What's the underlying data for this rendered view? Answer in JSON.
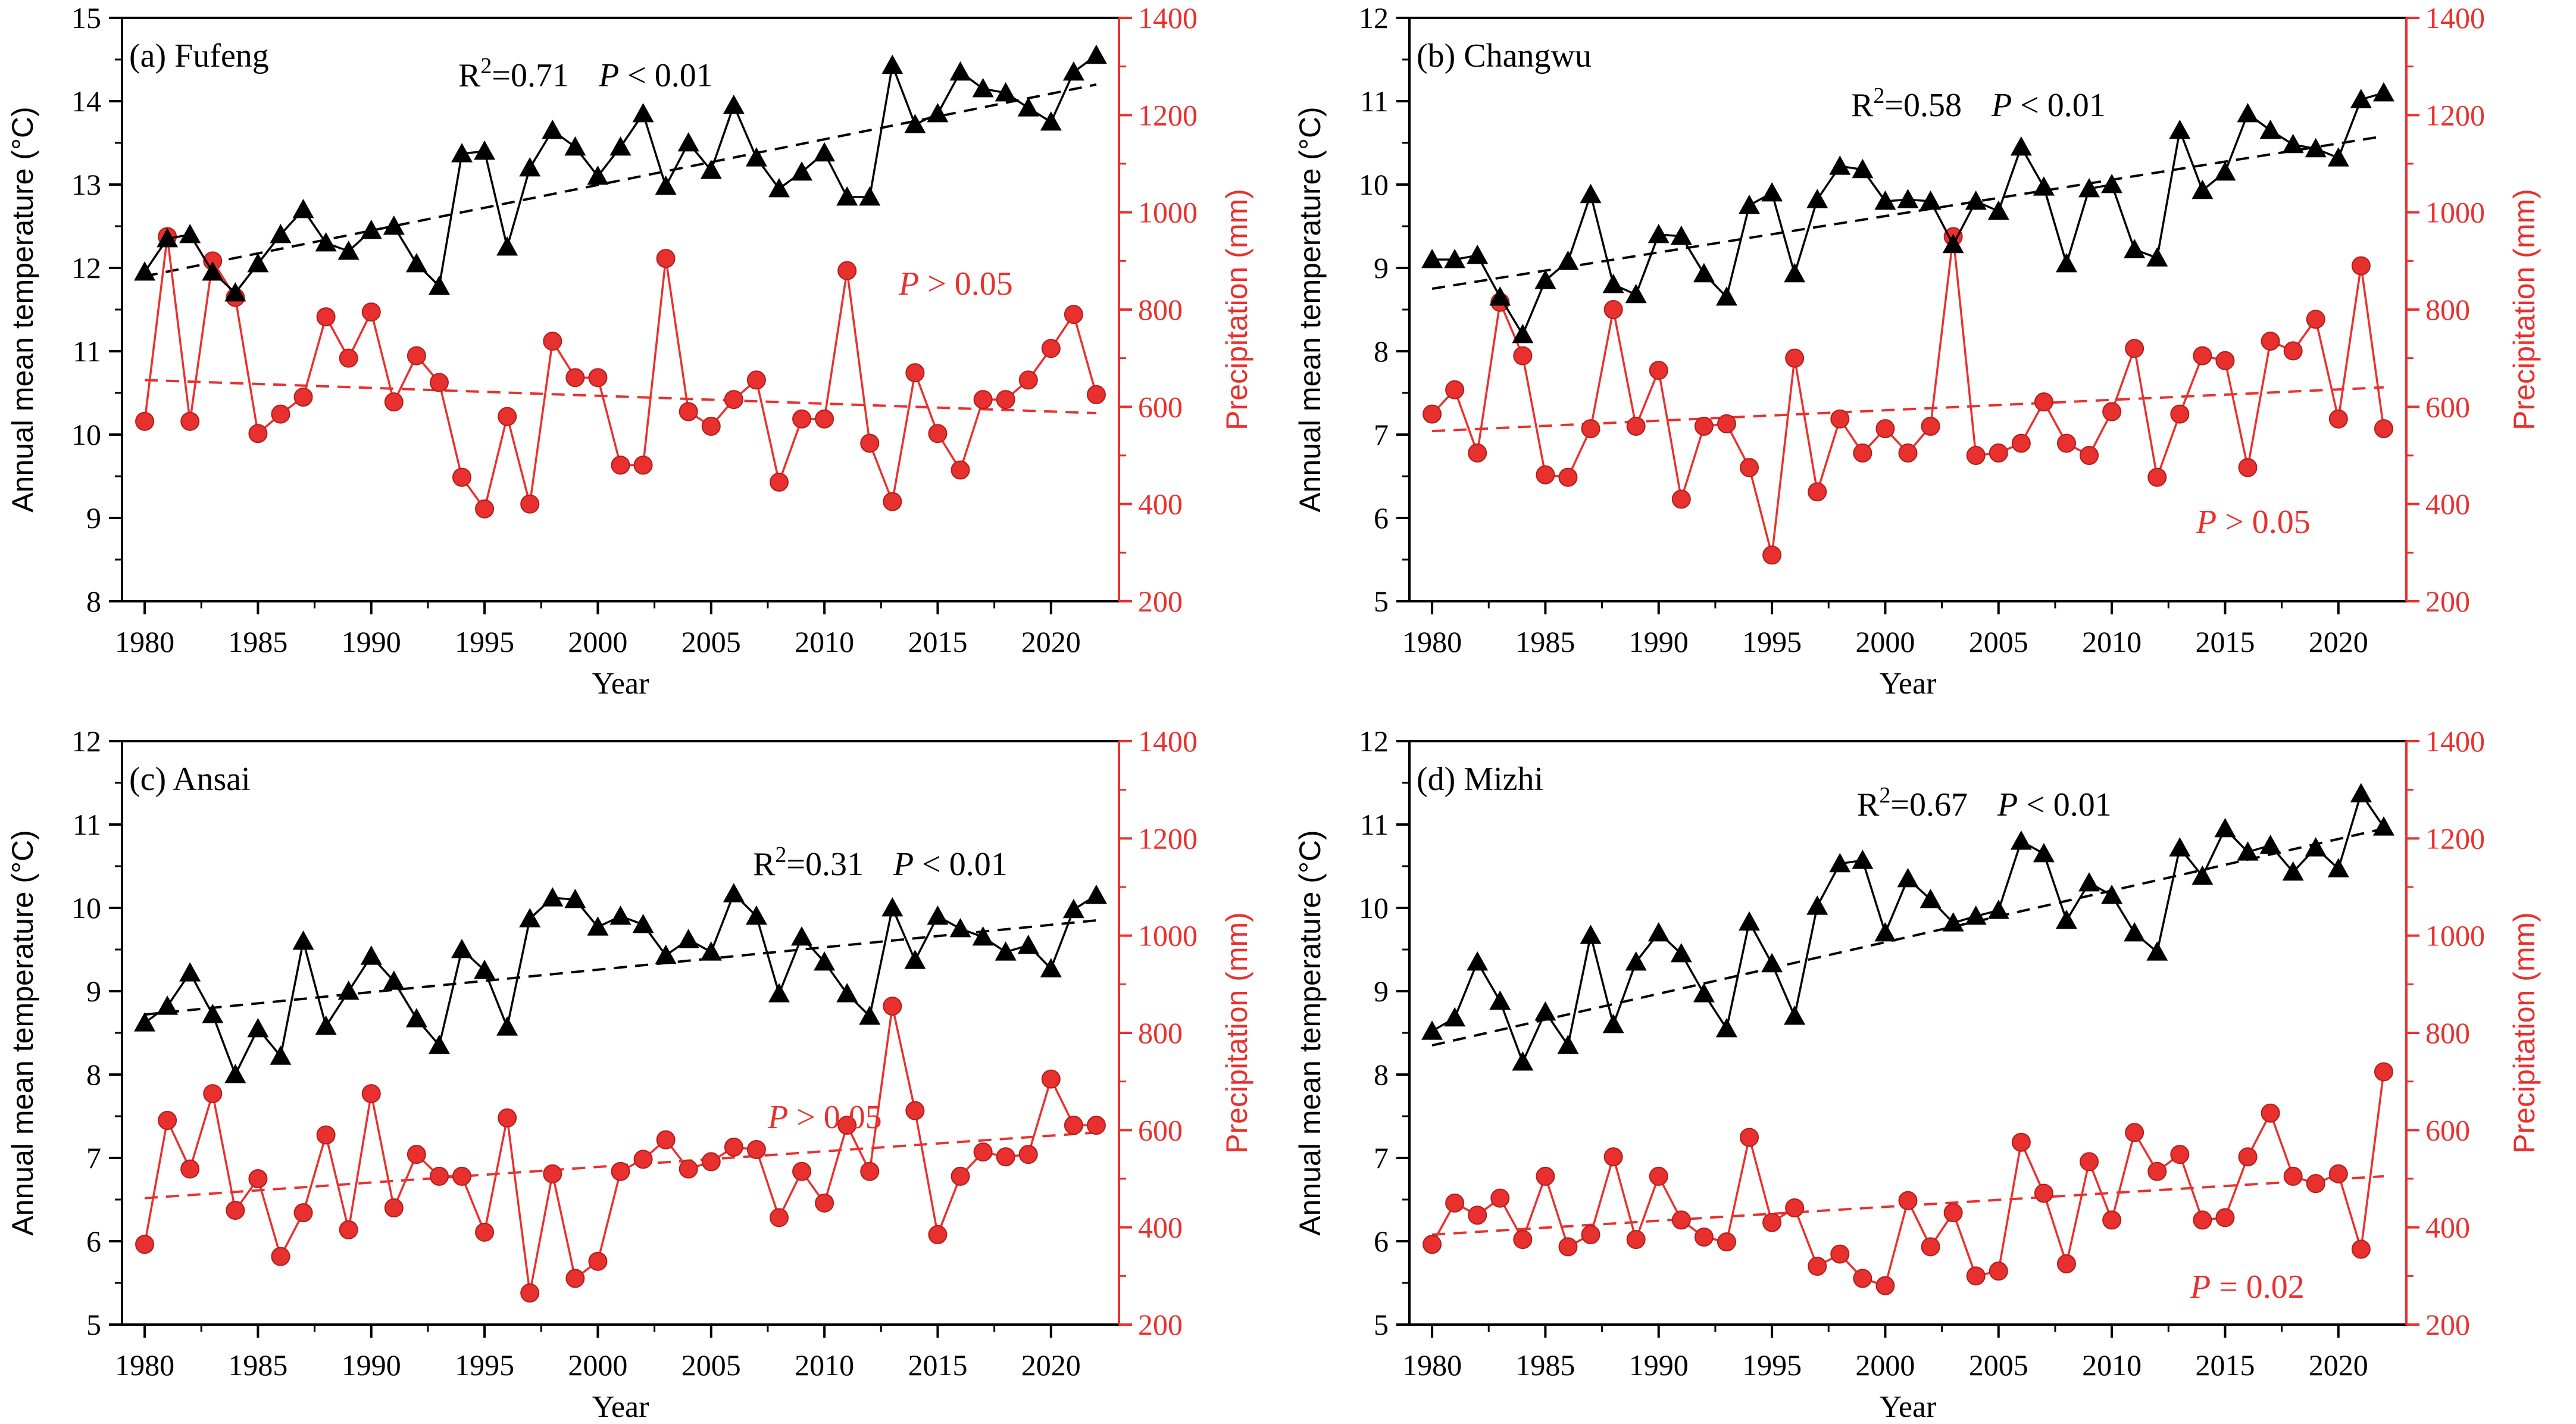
{
  "colors": {
    "temperature": "#000000",
    "precipitation": "#e8312e",
    "axis_right": "#e8312e"
  },
  "chart_data": [
    {
      "type": "line",
      "panel_label": "(a) Fufeng",
      "xlabel": "Year",
      "ylabel_left": "Annual mean temperature (°C)",
      "ylabel_right": "Precipitation (mm)",
      "xlim": [
        1979,
        2023
      ],
      "xticks": [
        1980,
        1985,
        1990,
        1995,
        2000,
        2005,
        2010,
        2015,
        2020
      ],
      "ylim_left": [
        8,
        15
      ],
      "yticks_left": [
        8,
        9,
        10,
        11,
        12,
        13,
        14,
        15
      ],
      "ylim_right": [
        200,
        1400
      ],
      "yticks_right": [
        200,
        400,
        600,
        800,
        1000,
        1200,
        1400
      ],
      "years": [
        1980,
        1981,
        1982,
        1983,
        1984,
        1985,
        1986,
        1987,
        1988,
        1989,
        1990,
        1991,
        1992,
        1993,
        1994,
        1995,
        1996,
        1997,
        1998,
        1999,
        2000,
        2001,
        2002,
        2003,
        2004,
        2005,
        2006,
        2007,
        2008,
        2009,
        2010,
        2011,
        2012,
        2013,
        2014,
        2015,
        2016,
        2017,
        2018,
        2019,
        2020,
        2021,
        2022
      ],
      "temperature": [
        11.95,
        12.35,
        12.4,
        11.95,
        11.7,
        12.05,
        12.4,
        12.7,
        12.3,
        12.2,
        12.45,
        12.5,
        12.05,
        11.78,
        13.37,
        13.4,
        12.25,
        13.2,
        13.65,
        13.45,
        13.1,
        13.45,
        13.85,
        12.98,
        13.5,
        13.17,
        13.95,
        13.32,
        12.95,
        13.15,
        13.38,
        12.85,
        12.85,
        14.43,
        13.72,
        13.85,
        14.35,
        14.15,
        14.1,
        13.92,
        13.75,
        14.35,
        14.55
      ],
      "precipitation": [
        570,
        950,
        570,
        900,
        825,
        545,
        585,
        620,
        785,
        700,
        795,
        610,
        705,
        650,
        455,
        390,
        580,
        400,
        735,
        660,
        660,
        480,
        480,
        905,
        590,
        560,
        615,
        655,
        445,
        575,
        575,
        880,
        525,
        405,
        670,
        545,
        470,
        615,
        615,
        655,
        720,
        790,
        625
      ],
      "temp_trend": [
        11.9,
        14.2
      ],
      "precip_trend": [
        655,
        587
      ],
      "stats_temp": {
        "r2_label": "R",
        "r2_sup": "2",
        "r2_value": "=0.71",
        "p_italic": "P",
        "p_rest": " < 0.01"
      },
      "stats_precip": {
        "p_italic": "P",
        "p_rest": " > 0.05"
      }
    },
    {
      "type": "line",
      "panel_label": "(b) Changwu",
      "xlabel": "Year",
      "ylabel_left": "Annual mean temperature (°C)",
      "ylabel_right": "Precipitation (mm)",
      "xlim": [
        1979,
        2023
      ],
      "xticks": [
        1980,
        1985,
        1990,
        1995,
        2000,
        2005,
        2010,
        2015,
        2020
      ],
      "ylim_left": [
        5,
        12
      ],
      "yticks_left": [
        5,
        6,
        7,
        8,
        9,
        10,
        11,
        12
      ],
      "ylim_right": [
        200,
        1400
      ],
      "yticks_right": [
        200,
        400,
        600,
        800,
        1000,
        1200,
        1400
      ],
      "years": [
        1980,
        1981,
        1982,
        1983,
        1984,
        1985,
        1986,
        1987,
        1988,
        1989,
        1990,
        1991,
        1992,
        1993,
        1994,
        1995,
        1996,
        1997,
        1998,
        1999,
        2000,
        2001,
        2002,
        2003,
        2004,
        2005,
        2006,
        2007,
        2008,
        2009,
        2010,
        2011,
        2012,
        2013,
        2014,
        2015,
        2016,
        2017,
        2018,
        2019,
        2020,
        2021,
        2022
      ],
      "temperature": [
        9.1,
        9.1,
        9.15,
        8.65,
        8.2,
        8.85,
        9.08,
        9.88,
        8.8,
        8.68,
        9.4,
        9.38,
        8.93,
        8.65,
        9.75,
        9.9,
        8.93,
        9.82,
        10.22,
        10.18,
        9.8,
        9.82,
        9.8,
        9.28,
        9.8,
        9.68,
        10.45,
        9.97,
        9.05,
        9.95,
        10.0,
        9.22,
        9.12,
        10.65,
        9.93,
        10.15,
        10.85,
        10.65,
        10.48,
        10.43,
        10.32,
        11.02,
        11.1
      ],
      "precipitation": [
        585,
        635,
        505,
        815,
        705,
        460,
        455,
        555,
        800,
        560,
        675,
        410,
        560,
        565,
        475,
        295,
        700,
        425,
        575,
        505,
        555,
        505,
        560,
        950,
        500,
        505,
        525,
        610,
        525,
        500,
        590,
        720,
        455,
        585,
        705,
        695,
        475,
        735,
        715,
        780,
        575,
        890,
        555
      ],
      "temp_trend": [
        8.75,
        10.58
      ],
      "precip_trend": [
        550,
        640
      ],
      "stats_temp": {
        "r2_label": "R",
        "r2_sup": "2",
        "r2_value": "=0.58",
        "p_italic": "P",
        "p_rest": " < 0.01"
      },
      "stats_precip": {
        "p_italic": "P",
        "p_rest": " > 0.05"
      }
    },
    {
      "type": "line",
      "panel_label": "(c) Ansai",
      "xlabel": "Year",
      "ylabel_left": "Annual mean temperature (°C)",
      "ylabel_right": "Precipitation (mm)",
      "xlim": [
        1979,
        2023
      ],
      "xticks": [
        1980,
        1985,
        1990,
        1995,
        2000,
        2005,
        2010,
        2015,
        2020
      ],
      "ylim_left": [
        5,
        12
      ],
      "yticks_left": [
        5,
        6,
        7,
        8,
        9,
        10,
        11,
        12
      ],
      "ylim_right": [
        200,
        1400
      ],
      "yticks_right": [
        200,
        400,
        600,
        800,
        1000,
        1200,
        1400
      ],
      "years": [
        1980,
        1981,
        1982,
        1983,
        1984,
        1985,
        1986,
        1987,
        1988,
        1989,
        1990,
        1991,
        1992,
        1993,
        1994,
        1995,
        1996,
        1997,
        1998,
        1999,
        2000,
        2001,
        2002,
        2003,
        2004,
        2005,
        2006,
        2007,
        2008,
        2009,
        2010,
        2011,
        2012,
        2013,
        2014,
        2015,
        2016,
        2017,
        2018,
        2019,
        2020,
        2021,
        2022
      ],
      "temperature": [
        8.62,
        8.82,
        9.22,
        8.72,
        8.0,
        8.55,
        8.22,
        9.6,
        8.58,
        9.0,
        9.42,
        9.12,
        8.67,
        8.35,
        9.5,
        9.25,
        8.57,
        9.87,
        10.12,
        10.1,
        9.77,
        9.9,
        9.8,
        9.43,
        9.62,
        9.47,
        10.17,
        9.9,
        8.97,
        9.65,
        9.35,
        8.97,
        8.7,
        10.0,
        9.37,
        9.9,
        9.75,
        9.65,
        9.47,
        9.55,
        9.27,
        9.98,
        10.15
      ],
      "precipitation": [
        365,
        620,
        520,
        675,
        435,
        500,
        340,
        430,
        590,
        395,
        675,
        440,
        550,
        505,
        505,
        390,
        625,
        265,
        510,
        295,
        330,
        515,
        540,
        580,
        520,
        535,
        565,
        560,
        420,
        515,
        450,
        610,
        515,
        855,
        640,
        385,
        505,
        555,
        545,
        550,
        705,
        610,
        610
      ],
      "temp_trend": [
        8.72,
        9.85
      ],
      "precip_trend": [
        460,
        595
      ],
      "stats_temp": {
        "r2_label": "R",
        "r2_sup": "2",
        "r2_value": "=0.31",
        "p_italic": "P",
        "p_rest": " < 0.01"
      },
      "stats_precip": {
        "p_italic": "P",
        "p_rest": " > 0.05"
      }
    },
    {
      "type": "line",
      "panel_label": "(d) Mizhi",
      "xlabel": "Year",
      "ylabel_left": "Annual mean temperature (°C)",
      "ylabel_right": "Precipitation (mm)",
      "xlim": [
        1979,
        2023
      ],
      "xticks": [
        1980,
        1985,
        1990,
        1995,
        2000,
        2005,
        2010,
        2015,
        2020
      ],
      "ylim_left": [
        5,
        12
      ],
      "yticks_left": [
        5,
        6,
        7,
        8,
        9,
        10,
        11,
        12
      ],
      "ylim_right": [
        200,
        1400
      ],
      "yticks_right": [
        200,
        400,
        600,
        800,
        1000,
        1200,
        1400
      ],
      "years": [
        1980,
        1981,
        1982,
        1983,
        1984,
        1985,
        1986,
        1987,
        1988,
        1989,
        1990,
        1991,
        1992,
        1993,
        1994,
        1995,
        1996,
        1997,
        1998,
        1999,
        2000,
        2001,
        2002,
        2003,
        2004,
        2005,
        2006,
        2007,
        2008,
        2009,
        2010,
        2011,
        2012,
        2013,
        2014,
        2015,
        2016,
        2017,
        2018,
        2019,
        2020,
        2021,
        2022
      ],
      "temperature": [
        8.52,
        8.68,
        9.35,
        8.88,
        8.15,
        8.75,
        8.35,
        9.67,
        8.6,
        9.35,
        9.7,
        9.45,
        8.97,
        8.55,
        9.83,
        9.33,
        8.7,
        10.02,
        10.53,
        10.57,
        9.7,
        10.35,
        10.1,
        9.82,
        9.9,
        9.97,
        10.8,
        10.65,
        9.85,
        10.3,
        10.15,
        9.7,
        9.47,
        10.72,
        10.38,
        10.95,
        10.67,
        10.75,
        10.43,
        10.72,
        10.47,
        11.37,
        10.97
      ],
      "precipitation": [
        365,
        450,
        425,
        460,
        375,
        505,
        360,
        385,
        545,
        375,
        505,
        415,
        380,
        370,
        585,
        410,
        440,
        320,
        345,
        295,
        280,
        455,
        360,
        430,
        300,
        310,
        575,
        470,
        325,
        535,
        415,
        595,
        515,
        550,
        415,
        420,
        545,
        635,
        505,
        490,
        510,
        355,
        720
      ],
      "temp_trend": [
        8.35,
        10.95
      ],
      "precip_trend": [
        385,
        505
      ],
      "stats_temp": {
        "r2_label": "R",
        "r2_sup": "2",
        "r2_value": "=0.67",
        "p_italic": "P",
        "p_rest": " < 0.01"
      },
      "stats_precip": {
        "p_italic": "P",
        "p_rest": " = 0.02"
      }
    }
  ]
}
